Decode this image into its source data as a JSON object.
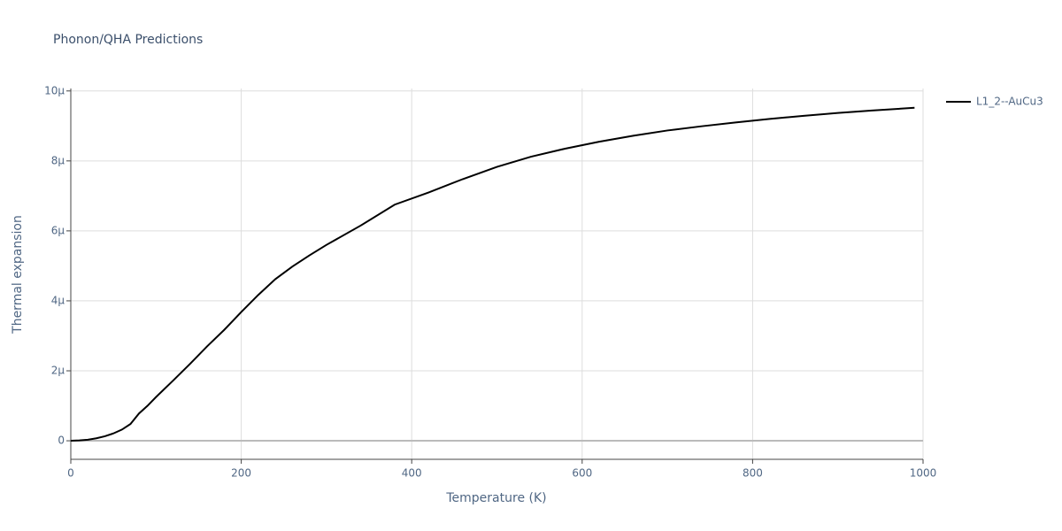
{
  "chart_data": {
    "type": "line",
    "title": "Phonon/QHA Predictions",
    "x_label": "Temperature (K)",
    "y_label": "Thermal expansion",
    "x": [
      0,
      10,
      20,
      30,
      40,
      50,
      60,
      70,
      80,
      90,
      100,
      120,
      140,
      160,
      180,
      200,
      220,
      240,
      260,
      280,
      300,
      340,
      380,
      420,
      460,
      500,
      540,
      580,
      620,
      660,
      700,
      740,
      780,
      820,
      860,
      900,
      940,
      990
    ],
    "series": [
      {
        "name": "L1_2--AuCu3",
        "color": "#000000",
        "values": [
          0,
          1e-08,
          3e-08,
          7e-08,
          1.3e-07,
          2.1e-07,
          3.2e-07,
          4.8e-07,
          7.8e-07,
          1e-06,
          1.25e-06,
          1.72e-06,
          2.2e-06,
          2.7e-06,
          3.17e-06,
          3.68e-06,
          4.17e-06,
          4.62e-06,
          4.98e-06,
          5.3e-06,
          5.6e-06,
          6.15e-06,
          6.75e-06,
          7.1e-06,
          7.48e-06,
          7.83e-06,
          8.12e-06,
          8.35e-06,
          8.55e-06,
          8.72e-06,
          8.87e-06,
          8.99e-06,
          9.1e-06,
          9.2e-06,
          9.29e-06,
          9.37e-06,
          9.44e-06,
          9.52e-06
        ]
      }
    ],
    "xlim": [
      0,
      1000
    ],
    "xticks": [
      0,
      200,
      400,
      600,
      800,
      1000
    ],
    "ylim": [
      -5.3e-07,
      1.007e-05
    ],
    "yticks": [
      0,
      {
        "value": 2e-06,
        "label": "2μ"
      },
      {
        "value": 4e-06,
        "label": "4μ"
      },
      {
        "value": 6e-06,
        "label": "6μ"
      },
      {
        "value": 8e-06,
        "label": "8μ"
      },
      {
        "value": 1e-05,
        "label": "10μ"
      }
    ],
    "grid": true,
    "legend": "right"
  }
}
